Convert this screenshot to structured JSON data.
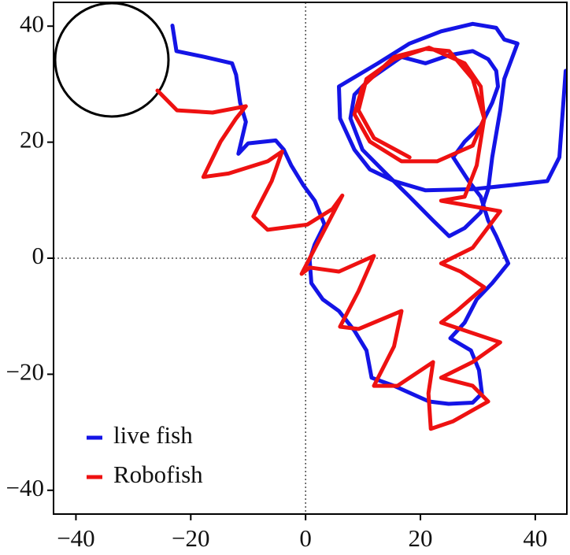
{
  "chart_data": {
    "type": "line",
    "xlim": [
      -43.9,
      45.5
    ],
    "ylim": [
      -44.1,
      44.1
    ],
    "xticks": [
      {
        "value": -40,
        "label": "−40"
      },
      {
        "value": -20,
        "label": "−20"
      },
      0,
      20,
      40
    ],
    "yticks": [
      {
        "value": -40,
        "label": "−40"
      },
      {
        "value": -20,
        "label": "−20"
      },
      0,
      20,
      40
    ],
    "legend": "lower left",
    "series": [
      {
        "name": "live fish",
        "color": "#1414e6",
        "x": [
          -23.2,
          -22.5,
          -17.6,
          -12.8,
          -12.1,
          -11.4,
          -10.4,
          -11.7,
          -10.0,
          -5.2,
          -3.8,
          -2.5,
          -0.4,
          1.6,
          3.3,
          1.6,
          0.7,
          1.0,
          3.0,
          5.8,
          8.5,
          10.6,
          11.5,
          15.4,
          21.5,
          24.9,
          29.1,
          30.7,
          30.2,
          28.8,
          25.2,
          27.7,
          29.8,
          32.5,
          35.3,
          33.2,
          31.8,
          30.5,
          28.4,
          25.7,
          27.7,
          30.5,
          32.5,
          33.5,
          33.2,
          31.8,
          29.1,
          25.0,
          20.9,
          16.7,
          11.2,
          8.5,
          7.8,
          9.9,
          14.0,
          18.1,
          22.2,
          25.0,
          27.7,
          30.5,
          31.8,
          32.5,
          33.9,
          34.6,
          36.9,
          34.6,
          33.2,
          29.1,
          23.6,
          18.1,
          12.6,
          5.8,
          6.0,
          8.5,
          11.2,
          15.4,
          20.9,
          29.1,
          35.9,
          42.1,
          44.2,
          45.3
        ],
        "values": [
          40.1,
          35.7,
          34.7,
          33.6,
          31.6,
          26.8,
          23.5,
          18.0,
          19.8,
          20.3,
          18.7,
          16.0,
          12.6,
          9.9,
          5.8,
          2.4,
          -0.3,
          -4.3,
          -7.1,
          -9.1,
          -12.5,
          -15.9,
          -20.6,
          -22.0,
          -24.7,
          -25.1,
          -24.9,
          -23.3,
          -19.3,
          -15.9,
          -13.8,
          -11.1,
          -7.1,
          -4.3,
          -0.9,
          3.8,
          6.5,
          10.6,
          13.3,
          17.4,
          20.1,
          22.8,
          26.8,
          29.6,
          32.3,
          34.3,
          35.7,
          35.0,
          33.6,
          34.7,
          30.9,
          28.2,
          24.1,
          18.7,
          14.6,
          10.6,
          6.5,
          3.8,
          5.2,
          7.9,
          11.9,
          17.4,
          25.5,
          30.9,
          37.0,
          37.7,
          39.7,
          40.4,
          39.1,
          37.0,
          33.6,
          29.6,
          24.1,
          18.7,
          15.3,
          13.3,
          11.7,
          11.9,
          12.6,
          13.3,
          17.4,
          32.3
        ]
      },
      {
        "name": "Robofish",
        "color": "#ee1111",
        "x": [
          -25.8,
          -22.4,
          -16.2,
          -10.4,
          -12.1,
          -14.8,
          -17.8,
          -13.4,
          -6.6,
          -4.1,
          -5.9,
          -9.1,
          -6.6,
          0.3,
          4.7,
          6.4,
          -0.7,
          0.7,
          5.8,
          11.9,
          9.2,
          6.0,
          9.2,
          16.7,
          15.4,
          11.9,
          16.0,
          22.2,
          21.4,
          21.8,
          25.7,
          31.8,
          29.1,
          23.6,
          29.1,
          33.9,
          23.6,
          26.3,
          31.1,
          27.0,
          23.6,
          29.1,
          33.9,
          23.6,
          27.7,
          29.8,
          31.1,
          29.1,
          25.0,
          20.9,
          15.4,
          9.9,
          8.5,
          11.2,
          16.7,
          22.9,
          29.1,
          31.1,
          30.5,
          27.7,
          21.5,
          15.4,
          10.6,
          9.2,
          11.9,
          18.1
        ],
        "values": [
          28.9,
          25.5,
          25.1,
          26.2,
          24.1,
          20.1,
          14.0,
          14.6,
          16.7,
          18.4,
          13.3,
          7.2,
          4.9,
          5.8,
          8.5,
          10.8,
          -2.7,
          -1.6,
          -2.3,
          0.4,
          -5.7,
          -11.8,
          -12.2,
          -9.1,
          -15.2,
          -22.0,
          -22.0,
          -17.9,
          -23.3,
          -29.4,
          -28.1,
          -24.7,
          -22.0,
          -20.6,
          -17.9,
          -14.5,
          -11.1,
          -9.1,
          -5.0,
          -2.3,
          -0.9,
          1.8,
          8.1,
          9.9,
          10.6,
          16.0,
          24.1,
          30.9,
          35.7,
          36.1,
          34.7,
          29.6,
          24.8,
          20.1,
          16.7,
          16.7,
          19.4,
          24.1,
          29.6,
          33.6,
          36.3,
          34.3,
          30.9,
          25.5,
          20.7,
          17.4
        ]
      }
    ]
  }
}
